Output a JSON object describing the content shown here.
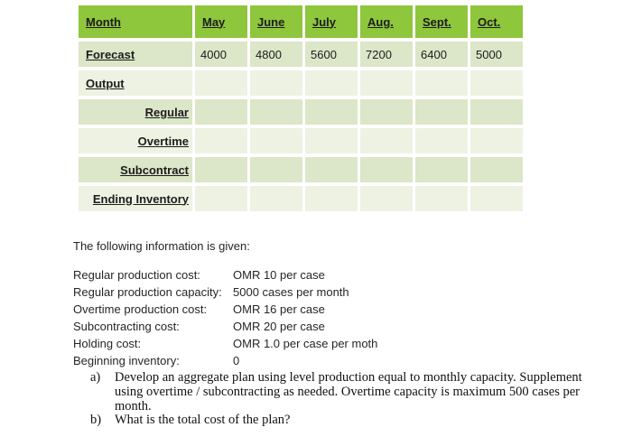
{
  "colors": {
    "header_bg": "#8ec63c",
    "band_dark": "#dce6c8",
    "band_light": "#edf2e3",
    "page_bg": "#ffffff"
  },
  "table": {
    "corner_label": "Month",
    "months": [
      "May",
      "June",
      "July",
      "Aug.",
      "Sept.",
      "Oct."
    ],
    "rows": [
      {
        "label": "Forecast",
        "values": [
          "4000",
          "4800",
          "5600",
          "7200",
          "6400",
          "5000"
        ]
      },
      {
        "label": "Output"
      },
      {
        "label": "Regular"
      },
      {
        "label": "Overtime"
      },
      {
        "label": "Subcontract"
      },
      {
        "label": "Ending Inventory"
      }
    ]
  },
  "info": {
    "intro": "The following information is given:",
    "items": [
      {
        "label": "Regular production cost:",
        "value": "OMR 10 per case"
      },
      {
        "label": "Regular production capacity:",
        "value": "5000 cases per month"
      },
      {
        "label": "Overtime production cost:",
        "value": "OMR 16 per case"
      },
      {
        "label": "Subcontracting cost:",
        "value": "OMR 20 per case"
      },
      {
        "label": "Holding cost:",
        "value": "OMR 1.0 per case per moth"
      },
      {
        "label": "Beginning inventory:",
        "value": "0"
      }
    ]
  },
  "questions": [
    {
      "marker": "a)",
      "lines": [
        "Develop an aggregate plan using level production equal to monthly capacity. Supplement",
        "using overtime / subcontracting as needed. Overtime capacity is maximum 500 cases per",
        "month."
      ]
    },
    {
      "marker": "b)",
      "lines": [
        "What is the total cost of the plan?"
      ]
    }
  ]
}
